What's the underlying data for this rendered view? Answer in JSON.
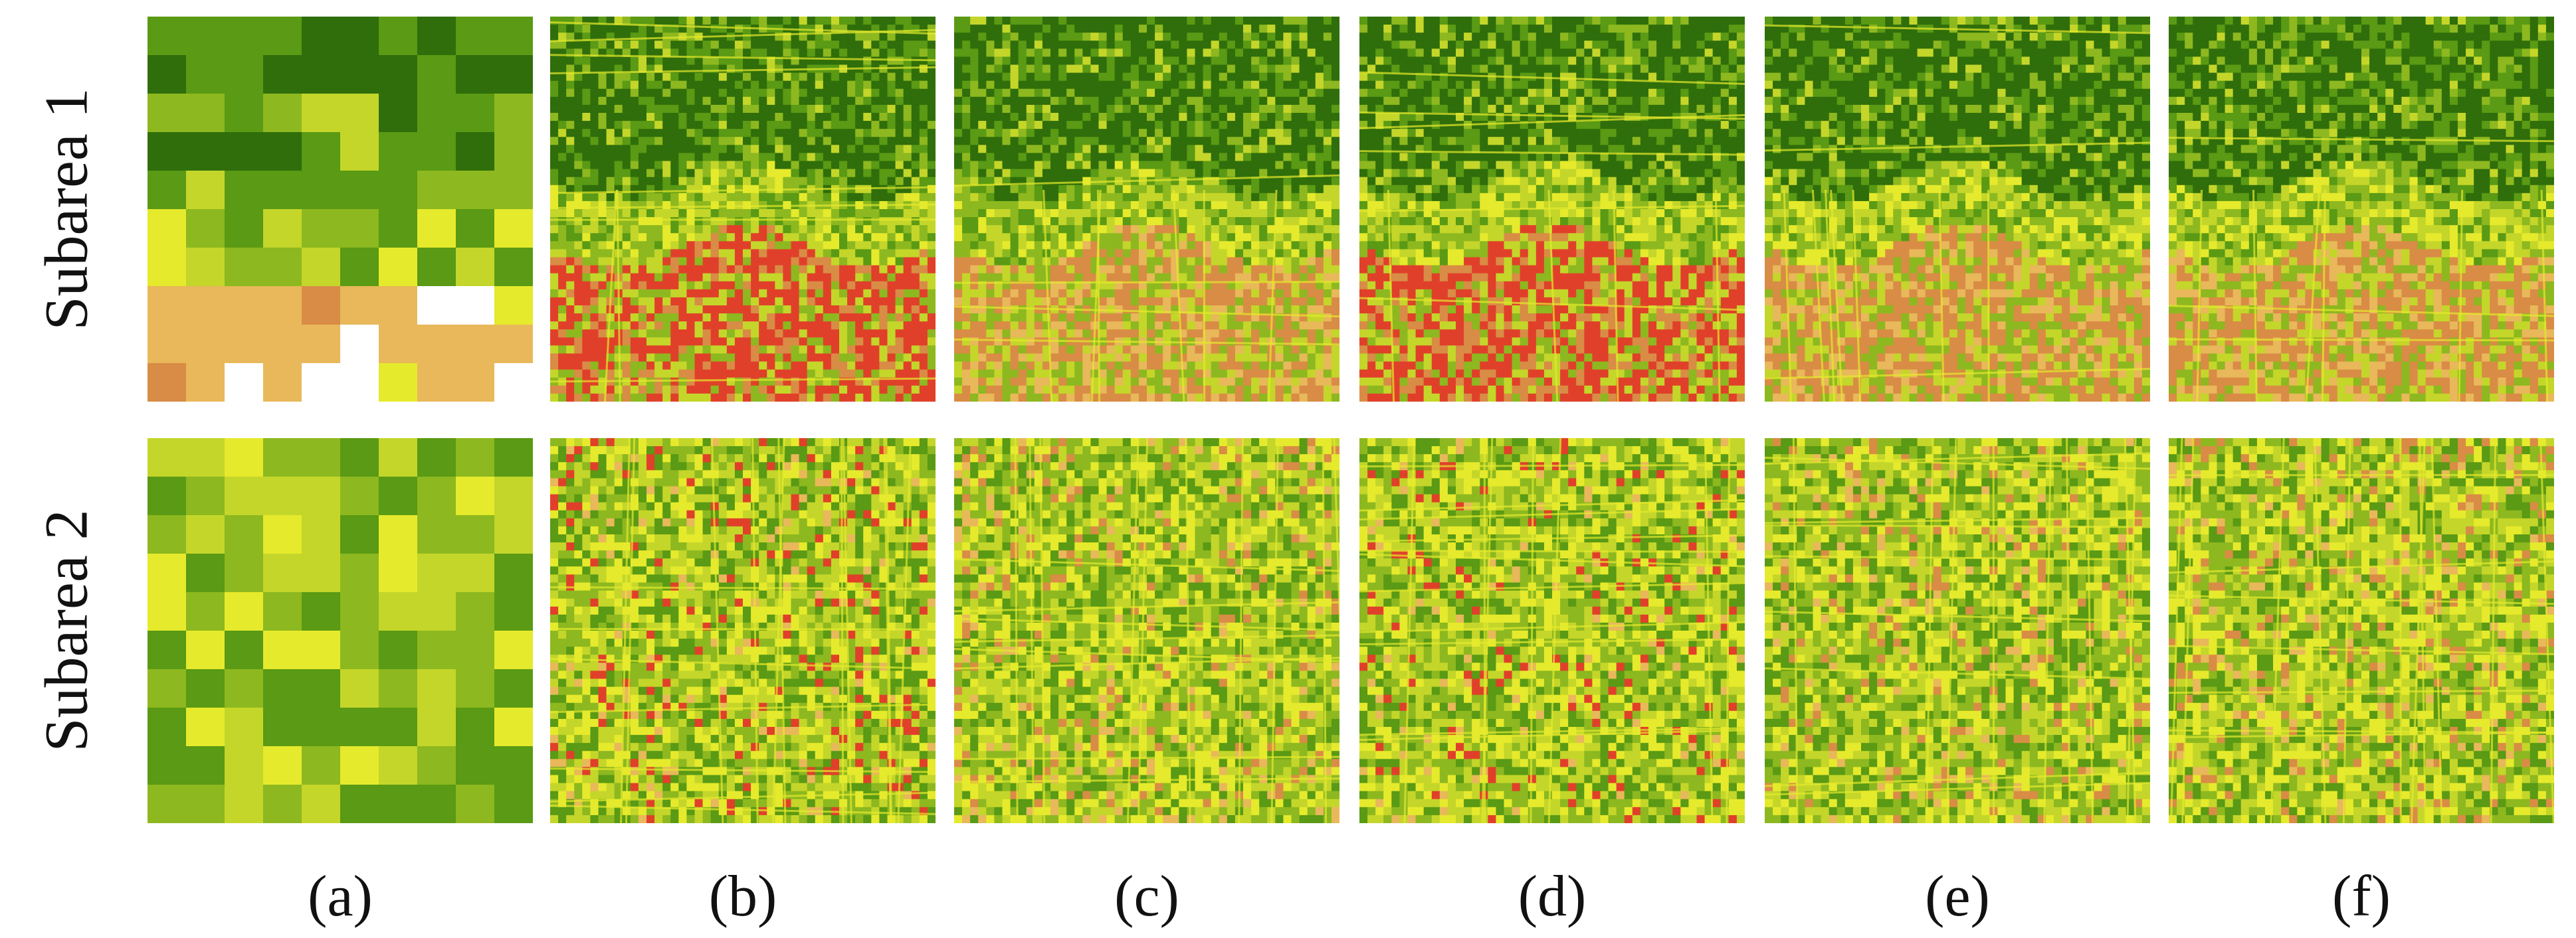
{
  "figure": {
    "rows": [
      {
        "label": "Subarea 1",
        "key": "subarea1"
      },
      {
        "label": "Subarea 2",
        "key": "subarea2"
      }
    ],
    "columns": [
      {
        "label": "(a)",
        "kind": "coarse"
      },
      {
        "label": "(b)",
        "kind": "fine-red"
      },
      {
        "label": "(c)",
        "kind": "fine-smooth"
      },
      {
        "label": "(d)",
        "kind": "fine-red"
      },
      {
        "label": "(e)",
        "kind": "fine-smooth"
      },
      {
        "label": "(f)",
        "kind": "fine-smooth"
      }
    ],
    "palette": {
      "dark_green": "#2f6e0a",
      "green": "#5a9a14",
      "light_green": "#8db81f",
      "yellow_green": "#c4d62a",
      "yellow": "#e6ea2c",
      "tan": "#e8b85a",
      "orange": "#d98c45",
      "red": "#e0402a",
      "white": "#ffffff"
    }
  }
}
